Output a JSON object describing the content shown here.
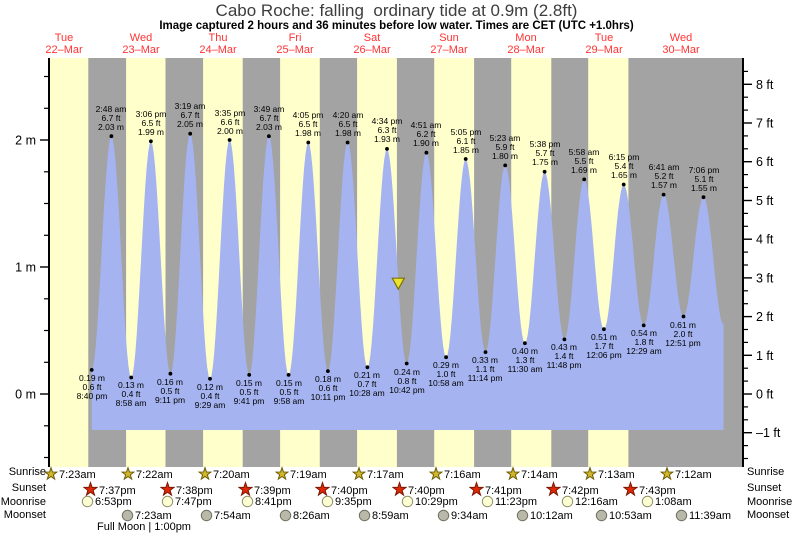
{
  "title": "Cabo Roche: falling  ordinary tide at 0.9m (2.8ft)",
  "subtitle": "Image captured 2 hours and 36 minutes before low water. Times are CET (UTC +1.0hrs)",
  "colors": {
    "daylight_band": "#ffffcc",
    "night_band": "#a3a3a3",
    "tide_fill": "#a5b4f0",
    "day_label": "#ff3333",
    "marker_fill": "#ede32e",
    "marker_stroke": "#7c7400",
    "sunrise_star": "#d2b62c",
    "sunrise_star_stroke": "#6b5c08",
    "sunset_star": "#e02807",
    "sunset_star_stroke": "#7c1703",
    "moonrise_circle": "#ffffd6",
    "moonrise_circle_stroke": "#8f8f6a",
    "moonset_circle": "#b9b9a9",
    "moonset_circle_stroke": "#6f6f5f"
  },
  "days": [
    {
      "name": "Tue",
      "date": "22–Mar"
    },
    {
      "name": "Wed",
      "date": "23–Mar"
    },
    {
      "name": "Thu",
      "date": "24–Mar"
    },
    {
      "name": "Fri",
      "date": "25–Mar"
    },
    {
      "name": "Sat",
      "date": "26–Mar"
    },
    {
      "name": "Sun",
      "date": "27–Mar"
    },
    {
      "name": "Mon",
      "date": "28–Mar"
    },
    {
      "name": "Tue",
      "date": "29–Mar"
    },
    {
      "name": "Wed",
      "date": "30–Mar"
    }
  ],
  "axes": {
    "left_ticks": [
      {
        "m": 0,
        "label": "0 m"
      },
      {
        "m": 1,
        "label": "1 m"
      },
      {
        "m": 2,
        "label": "2 m"
      }
    ],
    "right_ticks": [
      {
        "ft": 8,
        "label": "8 ft"
      },
      {
        "ft": 7,
        "label": "7 ft"
      },
      {
        "ft": 6,
        "label": "6 ft"
      },
      {
        "ft": 5,
        "label": "5 ft"
      },
      {
        "ft": 4,
        "label": "4 ft"
      },
      {
        "ft": 3,
        "label": "3 ft"
      },
      {
        "ft": 2,
        "label": "2 ft"
      },
      {
        "ft": 1,
        "label": "1 ft"
      },
      {
        "ft": 0,
        "label": "0 ft"
      },
      {
        "ft": -1,
        "label": "–1 ft"
      }
    ]
  },
  "chart_data": {
    "type": "area",
    "title": "Cabo Roche tide forecast",
    "x_axis": "Days Tue 22-Mar through Wed 30-Mar, times CET (UTC +1.0hrs)",
    "y_unit_left": "m",
    "y_unit_right": "ft",
    "y_left_range": [
      -0.58,
      2.65
    ],
    "current_tide": {
      "state": "falling",
      "level_m": 0.9,
      "level_ft": 2.8,
      "captured": "2 hours and 36 minutes before low water"
    },
    "tide_events": [
      {
        "d": 0,
        "time": "8:40 pm",
        "type": "low",
        "m": 0.19,
        "ft": 0.6
      },
      {
        "d": 1,
        "time": "2:48 am",
        "type": "high",
        "m": 2.03,
        "ft": 6.7
      },
      {
        "d": 1,
        "time": "8:58 am",
        "type": "low",
        "m": 0.13,
        "ft": 0.4
      },
      {
        "d": 1,
        "time": "3:06 pm",
        "type": "high",
        "m": 1.99,
        "ft": 6.5
      },
      {
        "d": 1,
        "time": "9:11 pm",
        "type": "low",
        "m": 0.16,
        "ft": 0.5
      },
      {
        "d": 2,
        "time": "3:19 am",
        "type": "high",
        "m": 2.05,
        "ft": 6.7
      },
      {
        "d": 2,
        "time": "9:29 am",
        "type": "low",
        "m": 0.12,
        "ft": 0.4
      },
      {
        "d": 2,
        "time": "3:35 pm",
        "type": "high",
        "m": 2.0,
        "ft": 6.6
      },
      {
        "d": 2,
        "time": "9:41 pm",
        "type": "low",
        "m": 0.15,
        "ft": 0.5
      },
      {
        "d": 3,
        "time": "3:49 am",
        "type": "high",
        "m": 2.03,
        "ft": 6.7
      },
      {
        "d": 3,
        "time": "9:58 am",
        "type": "low",
        "m": 0.15,
        "ft": 0.5
      },
      {
        "d": 3,
        "time": "4:05 pm",
        "type": "high",
        "m": 1.98,
        "ft": 6.5
      },
      {
        "d": 3,
        "time": "10:11 pm",
        "type": "low",
        "m": 0.18,
        "ft": 0.6
      },
      {
        "d": 4,
        "time": "4:20 am",
        "type": "high",
        "m": 1.98,
        "ft": 6.5
      },
      {
        "d": 4,
        "time": "10:28 am",
        "type": "low",
        "m": 0.21,
        "ft": 0.7
      },
      {
        "d": 4,
        "time": "4:34 pm",
        "type": "high",
        "m": 1.93,
        "ft": 6.3
      },
      {
        "d": 4,
        "time": "10:42 pm",
        "type": "low",
        "m": 0.24,
        "ft": 0.8
      },
      {
        "d": 5,
        "time": "4:51 am",
        "type": "high",
        "m": 1.9,
        "ft": 6.2
      },
      {
        "d": 5,
        "time": "10:58 am",
        "type": "low",
        "m": 0.29,
        "ft": 1.0
      },
      {
        "d": 5,
        "time": "5:05 pm",
        "type": "high",
        "m": 1.85,
        "ft": 6.1
      },
      {
        "d": 5,
        "time": "11:14 pm",
        "type": "low",
        "m": 0.33,
        "ft": 1.1
      },
      {
        "d": 6,
        "time": "5:23 am",
        "type": "high",
        "m": 1.8,
        "ft": 5.9
      },
      {
        "d": 6,
        "time": "11:30 am",
        "type": "low",
        "m": 0.4,
        "ft": 1.3
      },
      {
        "d": 6,
        "time": "5:38 pm",
        "type": "high",
        "m": 1.75,
        "ft": 5.7
      },
      {
        "d": 6,
        "time": "11:48 pm",
        "type": "low",
        "m": 0.43,
        "ft": 1.4
      },
      {
        "d": 7,
        "time": "5:58 am",
        "type": "high",
        "m": 1.69,
        "ft": 5.5
      },
      {
        "d": 7,
        "time": "12:06 pm",
        "type": "low",
        "m": 0.51,
        "ft": 1.7
      },
      {
        "d": 7,
        "time": "6:15 pm",
        "type": "high",
        "m": 1.65,
        "ft": 5.4
      },
      {
        "d": 8,
        "time": "12:29 am",
        "type": "low",
        "m": 0.54,
        "ft": 1.8
      },
      {
        "d": 8,
        "time": "6:41 am",
        "type": "high",
        "m": 1.57,
        "ft": 5.2
      },
      {
        "d": 8,
        "time": "12:51 pm",
        "type": "low",
        "m": 0.61,
        "ft": 2.0
      },
      {
        "d": 8,
        "time": "7:06 pm",
        "type": "high",
        "m": 1.55,
        "ft": 5.1
      }
    ]
  },
  "astro": {
    "rows": [
      {
        "key": "sunrise",
        "label": "Sunrise",
        "entries": [
          {
            "d": 0,
            "time": "7:23am"
          },
          {
            "d": 1,
            "time": "7:22am"
          },
          {
            "d": 2,
            "time": "7:20am"
          },
          {
            "d": 3,
            "time": "7:19am"
          },
          {
            "d": 4,
            "time": "7:17am"
          },
          {
            "d": 5,
            "time": "7:16am"
          },
          {
            "d": 6,
            "time": "7:14am"
          },
          {
            "d": 7,
            "time": "7:13am"
          },
          {
            "d": 8,
            "time": "7:12am"
          }
        ]
      },
      {
        "key": "sunset",
        "label": "Sunset",
        "entries": [
          {
            "d": 0,
            "time": "7:37pm"
          },
          {
            "d": 1,
            "time": "7:38pm"
          },
          {
            "d": 2,
            "time": "7:39pm"
          },
          {
            "d": 3,
            "time": "7:40pm"
          },
          {
            "d": 4,
            "time": "7:40pm"
          },
          {
            "d": 5,
            "time": "7:41pm"
          },
          {
            "d": 6,
            "time": "7:42pm"
          },
          {
            "d": 7,
            "time": "7:43pm"
          }
        ]
      },
      {
        "key": "moonrise",
        "label": "Moonrise",
        "entries": [
          {
            "d": 0,
            "time": "6:53pm"
          },
          {
            "d": 1,
            "time": "7:47pm"
          },
          {
            "d": 2,
            "time": "8:41pm"
          },
          {
            "d": 3,
            "time": "9:35pm"
          },
          {
            "d": 4,
            "time": "10:29pm"
          },
          {
            "d": 5,
            "time": "11:23pm"
          },
          {
            "d": 7,
            "time": "12:16am"
          },
          {
            "d": 8,
            "time": "1:08am"
          }
        ]
      },
      {
        "key": "moonset",
        "label": "Moonset",
        "entries": [
          {
            "d": 1,
            "time": "7:23am"
          },
          {
            "d": 2,
            "time": "7:54am"
          },
          {
            "d": 3,
            "time": "8:26am"
          },
          {
            "d": 4,
            "time": "8:59am"
          },
          {
            "d": 5,
            "time": "9:34am"
          },
          {
            "d": 6,
            "time": "10:12am"
          },
          {
            "d": 7,
            "time": "10:53am"
          },
          {
            "d": 8,
            "time": "11:39am"
          }
        ]
      }
    ],
    "moon_phase": "Full Moon | 1:00pm"
  }
}
